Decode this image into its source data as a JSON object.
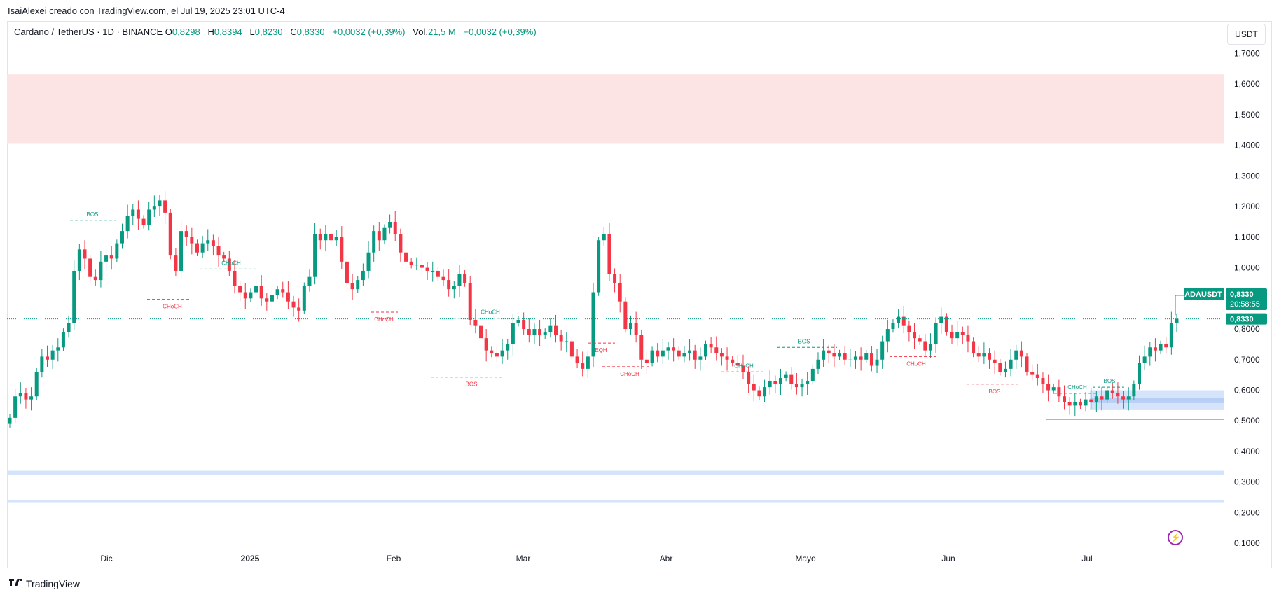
{
  "caption": "IsaiAlexei creado con TradingView.com, el Jul 19, 2025 23:01 UTC-4",
  "legend": {
    "symbol": "Cardano / TetherUS · 1D · BINANCE",
    "o_label": "O",
    "o_value": "0,8298",
    "h_label": "H",
    "h_value": "0,8394",
    "l_label": "L",
    "l_value": "0,8230",
    "c_label": "C",
    "c_value": "0,8330",
    "change": "+0,0032 (+0,39%)",
    "vol_label": "Vol.",
    "vol_value": "21,5 M",
    "vol_change": "+0,0032 (+0,39%)"
  },
  "unit_button": "USDT",
  "footer": {
    "brand": "TradingView"
  },
  "price_labels": {
    "symbol_tag": "ADAUSDT",
    "last_price": "0,8330",
    "countdown": "20:58:55",
    "line_price": "0,8330"
  },
  "colors": {
    "up": "#089981",
    "down": "#f23645",
    "supply_zone": "#fde4e4",
    "demand_zone": "#d6e4fb",
    "accent": "#9c27b0"
  },
  "chart_data": {
    "type": "candlestick",
    "y_axis": {
      "ticks": [
        "1,7000",
        "1,6000",
        "1,5000",
        "1,4000",
        "1,3000",
        "1,2000",
        "1,1000",
        "1,0000",
        "0,9000",
        "0,8000",
        "0,7000",
        "0,6000",
        "0,5000",
        "0,4000",
        "0,3000",
        "0,2000",
        "0,1000"
      ],
      "range": [
        0.07,
        1.72
      ]
    },
    "x_axis": {
      "labels": [
        "Dic",
        "2025",
        "Feb",
        "Mar",
        "Abr",
        "Mayo",
        "Jun",
        "Jul"
      ]
    },
    "last_close": 0.833,
    "annotations": [
      {
        "text": "BOS",
        "color": "up"
      },
      {
        "text": "CHoCH",
        "color": "down"
      },
      {
        "text": "CHoCH",
        "color": "up"
      },
      {
        "text": "CHoCH",
        "color": "down"
      },
      {
        "text": "CHoCH",
        "color": "up"
      },
      {
        "text": "BOS",
        "color": "down"
      },
      {
        "text": "EQH",
        "color": "down"
      },
      {
        "text": "CHoCH",
        "color": "down"
      },
      {
        "text": "CHoCH",
        "color": "up"
      },
      {
        "text": "BOS",
        "color": "up"
      },
      {
        "text": "CHoCH",
        "color": "down"
      },
      {
        "text": "BOS",
        "color": "down"
      },
      {
        "text": "CHoCH",
        "color": "up"
      },
      {
        "text": "BOS",
        "color": "up"
      }
    ],
    "zones": [
      {
        "type": "supply",
        "from": 1.405,
        "to": 1.632
      },
      {
        "type": "demand",
        "from": 0.535,
        "to": 0.6
      },
      {
        "type": "demand",
        "from": 0.323,
        "to": 0.337
      },
      {
        "type": "demand",
        "from": 0.234,
        "to": 0.242
      }
    ],
    "closes": [
      0.51,
      0.58,
      0.59,
      0.57,
      0.58,
      0.66,
      0.71,
      0.7,
      0.73,
      0.74,
      0.79,
      0.82,
      0.99,
      1.06,
      1.03,
      0.97,
      0.96,
      1.02,
      1.04,
      1.03,
      1.08,
      1.12,
      1.17,
      1.19,
      1.16,
      1.14,
      1.19,
      1.2,
      1.22,
      1.18,
      1.04,
      0.99,
      1.12,
      1.1,
      1.08,
      1.05,
      1.08,
      1.09,
      1.07,
      1.04,
      1.03,
      0.99,
      0.94,
      0.92,
      0.9,
      0.92,
      0.94,
      0.9,
      0.89,
      0.91,
      0.93,
      0.92,
      0.89,
      0.87,
      0.86,
      0.94,
      0.97,
      1.11,
      1.09,
      1.11,
      1.09,
      1.1,
      1.02,
      0.95,
      0.93,
      0.96,
      0.99,
      1.05,
      1.12,
      1.09,
      1.13,
      1.15,
      1.11,
      1.05,
      1.02,
      1.01,
      1.01,
      1.0,
      0.99,
      0.99,
      0.97,
      0.96,
      0.93,
      0.94,
      0.98,
      0.95,
      0.83,
      0.81,
      0.77,
      0.73,
      0.72,
      0.71,
      0.73,
      0.75,
      0.82,
      0.83,
      0.8,
      0.78,
      0.8,
      0.78,
      0.79,
      0.81,
      0.78,
      0.76,
      0.76,
      0.71,
      0.69,
      0.67,
      0.71,
      0.92,
      1.09,
      1.11,
      0.98,
      0.95,
      0.89,
      0.8,
      0.82,
      0.78,
      0.7,
      0.69,
      0.73,
      0.71,
      0.73,
      0.74,
      0.73,
      0.71,
      0.72,
      0.73,
      0.7,
      0.71,
      0.75,
      0.74,
      0.72,
      0.71,
      0.7,
      0.69,
      0.68,
      0.66,
      0.62,
      0.6,
      0.58,
      0.61,
      0.63,
      0.62,
      0.64,
      0.65,
      0.62,
      0.61,
      0.62,
      0.63,
      0.67,
      0.7,
      0.73,
      0.72,
      0.71,
      0.72,
      0.7,
      0.7,
      0.71,
      0.7,
      0.72,
      0.68,
      0.7,
      0.76,
      0.8,
      0.82,
      0.84,
      0.81,
      0.79,
      0.77,
      0.76,
      0.73,
      0.75,
      0.82,
      0.84,
      0.79,
      0.77,
      0.79,
      0.78,
      0.76,
      0.72,
      0.71,
      0.72,
      0.7,
      0.69,
      0.66,
      0.67,
      0.7,
      0.73,
      0.71,
      0.66,
      0.65,
      0.64,
      0.62,
      0.6,
      0.61,
      0.58,
      0.56,
      0.55,
      0.56,
      0.55,
      0.57,
      0.56,
      0.58,
      0.57,
      0.6,
      0.59,
      0.58,
      0.57,
      0.58,
      0.62,
      0.69,
      0.71,
      0.74,
      0.73,
      0.75,
      0.74,
      0.82,
      0.833
    ]
  }
}
